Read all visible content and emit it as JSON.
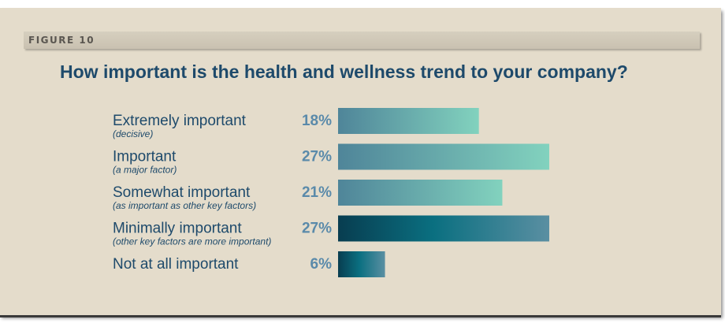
{
  "figure_label": "FIGURE 10",
  "chart_data": {
    "type": "bar",
    "orientation": "horizontal",
    "title": "How important is the health and wellness trend to your company?",
    "categories": [
      "Extremely important",
      "Important",
      "Somewhat important",
      "Minimally important",
      "Not at all important"
    ],
    "sublabels": [
      "(decisive)",
      "(a major factor)",
      "(as important as other key factors)",
      "(other key factors are more important)",
      ""
    ],
    "values": [
      18,
      27,
      21,
      27,
      6
    ],
    "value_labels": [
      "18%",
      "27%",
      "21%",
      "27%",
      "6%"
    ],
    "unit": "%",
    "xlim": [
      0,
      27
    ],
    "grid": false,
    "legend": "none",
    "colors": {
      "light_start": "#4f8599",
      "light_end": "#82d2be",
      "dark_start": "#083d50",
      "dark_mid": "#0a6f80",
      "dark_end": "#5a8fa2"
    }
  }
}
